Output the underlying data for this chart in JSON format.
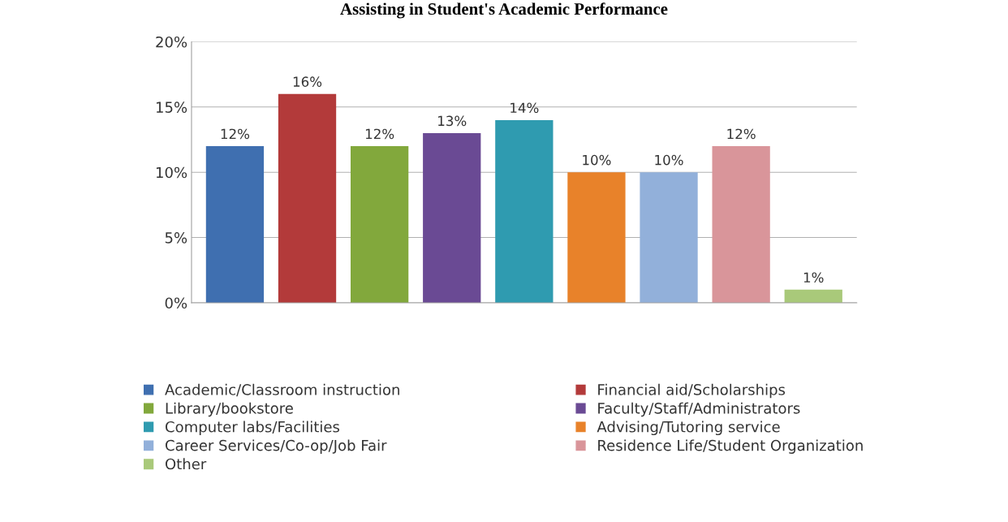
{
  "chart_data": {
    "type": "bar",
    "title": "Assisting in Student's Academic Performance",
    "categories": [
      null,
      null,
      null,
      null,
      null,
      null,
      null,
      null,
      null
    ],
    "series": [
      {
        "name": "Academic/Classroom instruction",
        "color": "#3f6fb0",
        "values": [
          12,
          null,
          null,
          null,
          null,
          null,
          null,
          null,
          null
        ],
        "value_labels": [
          "12%",
          null,
          null,
          null,
          null,
          null,
          null,
          null,
          null
        ]
      },
      {
        "name": "Financial aid/Scholarships",
        "color": "#b33a3a",
        "values": [
          null,
          16,
          null,
          null,
          null,
          null,
          null,
          null,
          null
        ],
        "value_labels": [
          null,
          "16%",
          null,
          null,
          null,
          null,
          null,
          null,
          null
        ]
      },
      {
        "name": "Library/bookstore",
        "color": "#82a83c",
        "values": [
          null,
          null,
          12,
          null,
          null,
          null,
          null,
          null,
          null
        ],
        "value_labels": [
          null,
          null,
          "12%",
          null,
          null,
          null,
          null,
          null,
          null
        ]
      },
      {
        "name": "Faculty/Staff/Administrators",
        "color": "#6a4a94",
        "values": [
          null,
          null,
          null,
          13,
          null,
          null,
          null,
          null,
          null
        ],
        "value_labels": [
          null,
          null,
          null,
          "13%",
          null,
          null,
          null,
          null,
          null
        ]
      },
      {
        "name": "Computer labs/Facilities",
        "color": "#2f9bb0",
        "values": [
          null,
          null,
          null,
          null,
          14,
          null,
          null,
          null,
          null
        ],
        "value_labels": [
          null,
          null,
          null,
          null,
          "14%",
          null,
          null,
          null,
          null
        ]
      },
      {
        "name": "Advising/Tutoring service",
        "color": "#e8822a",
        "values": [
          null,
          null,
          null,
          null,
          null,
          10,
          null,
          null,
          null
        ],
        "value_labels": [
          null,
          null,
          null,
          null,
          null,
          "10%",
          null,
          null,
          null
        ]
      },
      {
        "name": "Career Services/Co-op/Job Fair",
        "color": "#92b0da",
        "values": [
          null,
          null,
          null,
          null,
          null,
          null,
          10,
          null,
          null
        ],
        "value_labels": [
          null,
          null,
          null,
          null,
          null,
          null,
          "10%",
          null,
          null
        ]
      },
      {
        "name": "Residence Life/Student Organization",
        "color": "#d9959a",
        "values": [
          null,
          null,
          null,
          null,
          null,
          null,
          null,
          12,
          null
        ],
        "value_labels": [
          null,
          null,
          null,
          null,
          null,
          null,
          null,
          "12%",
          null
        ]
      },
      {
        "name": "Other",
        "color": "#a9c97a",
        "values": [
          null,
          null,
          null,
          null,
          null,
          null,
          null,
          null,
          1
        ],
        "value_labels": [
          null,
          null,
          null,
          null,
          null,
          null,
          null,
          null,
          "1%"
        ]
      }
    ],
    "ylim": [
      0,
      20
    ],
    "yticks": [
      {
        "value": 0,
        "label": "0%"
      },
      {
        "value": 5,
        "label": "5%"
      },
      {
        "value": 10,
        "label": "10%"
      },
      {
        "value": 15,
        "label": "15%"
      },
      {
        "value": 20,
        "label": "20%"
      }
    ],
    "grid": "y",
    "legend": "bottom"
  }
}
